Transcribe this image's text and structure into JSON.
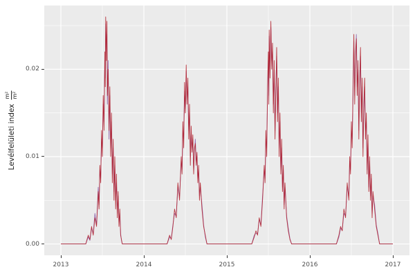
{
  "figure": {
    "background": "#ffffff",
    "panel_background": "#ebebeb",
    "grid_major_color": "#ffffff",
    "grid_minor_color": "#ffffff",
    "tick_color": "#333333",
    "tick_label_color": "#4d4d4d"
  },
  "axes": {
    "y_title": "Levélfelületi index",
    "y_frac_num": "m²",
    "y_frac_den": "m²",
    "x_major": [
      2013,
      2014,
      2015,
      2016,
      2017
    ],
    "x_minor": [
      2013.5,
      2014.5,
      2015.5,
      2016.5
    ],
    "x_tick_labels": [
      "2013",
      "2014",
      "2015",
      "2016",
      "2017"
    ],
    "y_major": [
      0,
      0.01,
      0.02
    ],
    "y_minor": [
      0.005,
      0.015,
      0.025
    ],
    "y_tick_labels": [
      "0.00",
      "0.01",
      "0.02"
    ]
  },
  "chart_data": {
    "type": "line",
    "title": "",
    "xlabel": "",
    "ylabel": "Levélfelületi index m²/m²",
    "x_range": [
      2012.8,
      2017.2
    ],
    "y_range": [
      -0.0013,
      0.0273
    ],
    "grid": true,
    "legend": false,
    "x": [
      2013.0,
      2013.3,
      2013.33,
      2013.35,
      2013.37,
      2013.39,
      2013.41,
      2013.43,
      2013.45,
      2013.46,
      2013.47,
      2013.48,
      2013.49,
      2013.5,
      2013.51,
      2013.52,
      2013.53,
      2013.535,
      2013.54,
      2013.55,
      2013.555,
      2013.56,
      2013.57,
      2013.58,
      2013.59,
      2013.6,
      2013.61,
      2013.62,
      2013.63,
      2013.64,
      2013.65,
      2013.66,
      2013.67,
      2013.68,
      2013.69,
      2013.7,
      2013.71,
      2013.72,
      2013.73,
      2013.74,
      2014.28,
      2014.31,
      2014.33,
      2014.35,
      2014.37,
      2014.39,
      2014.41,
      2014.43,
      2014.45,
      2014.46,
      2014.47,
      2014.48,
      2014.49,
      2014.5,
      2014.51,
      2014.52,
      2014.53,
      2014.54,
      2014.55,
      2014.56,
      2014.57,
      2014.58,
      2014.59,
      2014.6,
      2014.61,
      2014.62,
      2014.63,
      2014.64,
      2014.65,
      2014.66,
      2014.67,
      2014.68,
      2014.7,
      2014.72,
      2014.74,
      2014.76,
      2015.3,
      2015.33,
      2015.35,
      2015.37,
      2015.39,
      2015.41,
      2015.43,
      2015.45,
      2015.46,
      2015.47,
      2015.48,
      2015.49,
      2015.5,
      2015.505,
      2015.51,
      2015.52,
      2015.53,
      2015.54,
      2015.55,
      2015.56,
      2015.57,
      2015.58,
      2015.59,
      2015.6,
      2015.61,
      2015.62,
      2015.63,
      2015.64,
      2015.65,
      2015.66,
      2015.67,
      2015.68,
      2015.69,
      2015.7,
      2015.72,
      2015.74,
      2015.76,
      2015.78,
      2016.32,
      2016.35,
      2016.37,
      2016.39,
      2016.41,
      2016.43,
      2016.45,
      2016.47,
      2016.48,
      2016.49,
      2016.5,
      2016.51,
      2016.52,
      2016.53,
      2016.54,
      2016.55,
      2016.56,
      2016.57,
      2016.58,
      2016.59,
      2016.6,
      2016.61,
      2016.62,
      2016.63,
      2016.64,
      2016.65,
      2016.66,
      2016.67,
      2016.68,
      2016.69,
      2016.7,
      2016.71,
      2016.72,
      2016.73,
      2016.74,
      2016.75,
      2016.76,
      2016.78,
      2016.8,
      2016.82,
      2016.84,
      2017.0
    ],
    "series": [
      {
        "name": "purple-line",
        "color": "#8e63ad",
        "y": [
          0,
          0,
          0.0008,
          0.0004,
          0.0018,
          0.0012,
          0.0035,
          0.0022,
          0.0065,
          0.0045,
          0.0085,
          0.0075,
          0.012,
          0.011,
          0.016,
          0.014,
          0.021,
          0.019,
          0.0252,
          0.022,
          0.024,
          0.016,
          0.021,
          0.012,
          0.017,
          0.011,
          0.014,
          0.008,
          0.011,
          0.006,
          0.009,
          0.005,
          0.007,
          0.0035,
          0.0055,
          0.0025,
          0.0035,
          0.0012,
          0.0004,
          0,
          0,
          0.0008,
          0.0006,
          0.0022,
          0.0035,
          0.0032,
          0.0065,
          0.0055,
          0.0095,
          0.0085,
          0.013,
          0.012,
          0.0175,
          0.0155,
          0.0198,
          0.0165,
          0.018,
          0.013,
          0.015,
          0.01,
          0.0125,
          0.011,
          0.012,
          0.0085,
          0.0105,
          0.012,
          0.0095,
          0.01,
          0.0075,
          0.0085,
          0.0055,
          0.0065,
          0.0045,
          0.0022,
          0.0008,
          0,
          0,
          0.001,
          0.0012,
          0.0012,
          0.0028,
          0.0022,
          0.0055,
          0.0085,
          0.0075,
          0.012,
          0.011,
          0.017,
          0.021,
          0.017,
          0.0238,
          0.02,
          0.0248,
          0.021,
          0.022,
          0.016,
          0.02,
          0.013,
          0.018,
          0.0215,
          0.015,
          0.018,
          0.011,
          0.014,
          0.0085,
          0.011,
          0.0065,
          0.0085,
          0.0045,
          0.0065,
          0.0032,
          0.0018,
          0.0006,
          0,
          0,
          0.0008,
          0.0018,
          0.0016,
          0.0035,
          0.0032,
          0.0065,
          0.0055,
          0.0095,
          0.0085,
          0.013,
          0.012,
          0.017,
          0.0232,
          0.017,
          0.021,
          0.024,
          0.018,
          0.02,
          0.013,
          0.018,
          0.0215,
          0.015,
          0.018,
          0.011,
          0.015,
          0.018,
          0.013,
          0.014,
          0.0085,
          0.0115,
          0.0065,
          0.0095,
          0.0055,
          0.0075,
          0.0035,
          0.0055,
          0.0045,
          0.0022,
          0.0012,
          0,
          0
        ]
      },
      {
        "name": "red-line",
        "color": "#b2222d",
        "y": [
          0,
          0,
          0.001,
          0.0005,
          0.002,
          0.001,
          0.003,
          0.002,
          0.006,
          0.004,
          0.009,
          0.007,
          0.013,
          0.01,
          0.017,
          0.013,
          0.022,
          0.018,
          0.026,
          0.021,
          0.0255,
          0.017,
          0.02,
          0.013,
          0.018,
          0.01,
          0.015,
          0.007,
          0.012,
          0.005,
          0.01,
          0.004,
          0.008,
          0.003,
          0.006,
          0.002,
          0.004,
          0.001,
          0.0005,
          0,
          0,
          0.001,
          0.0005,
          0.002,
          0.004,
          0.003,
          0.007,
          0.005,
          0.01,
          0.008,
          0.014,
          0.011,
          0.0185,
          0.015,
          0.0205,
          0.016,
          0.019,
          0.012,
          0.016,
          0.009,
          0.0135,
          0.0105,
          0.0125,
          0.008,
          0.011,
          0.0115,
          0.009,
          0.0105,
          0.007,
          0.009,
          0.005,
          0.007,
          0.004,
          0.002,
          0.001,
          0,
          0,
          0.0008,
          0.0015,
          0.001,
          0.003,
          0.002,
          0.005,
          0.009,
          0.007,
          0.013,
          0.01,
          0.018,
          0.022,
          0.016,
          0.0245,
          0.019,
          0.0255,
          0.02,
          0.023,
          0.015,
          0.021,
          0.012,
          0.0175,
          0.0225,
          0.014,
          0.019,
          0.01,
          0.015,
          0.008,
          0.012,
          0.006,
          0.009,
          0.004,
          0.007,
          0.003,
          0.0015,
          0.0005,
          0,
          0,
          0.001,
          0.002,
          0.0015,
          0.004,
          0.003,
          0.007,
          0.005,
          0.01,
          0.008,
          0.014,
          0.011,
          0.018,
          0.024,
          0.016,
          0.022,
          0.0235,
          0.017,
          0.021,
          0.012,
          0.019,
          0.0225,
          0.014,
          0.019,
          0.01,
          0.016,
          0.019,
          0.012,
          0.015,
          0.008,
          0.0125,
          0.006,
          0.01,
          0.005,
          0.008,
          0.003,
          0.006,
          0.004,
          0.002,
          0.001,
          0,
          0
        ]
      }
    ]
  }
}
